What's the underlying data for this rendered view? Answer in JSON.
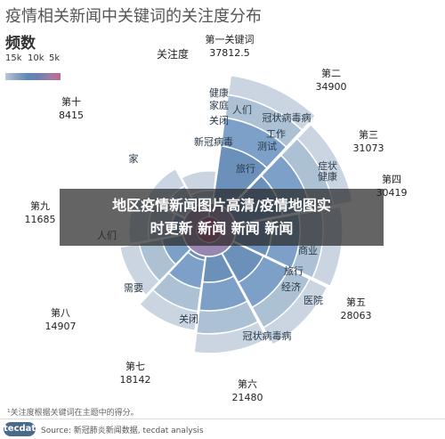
{
  "title": "疫情相关新闻中关键词的关注度分布",
  "legend": {
    "title": "频数",
    "ticks": [
      "15k",
      "10k",
      "5k"
    ]
  },
  "footnote": "¹关注度根据关键词在主题中的得分。",
  "footer": {
    "logo": "tecdat",
    "source": "Source: 新冠肺炎新闻数据, tecdat analysis"
  },
  "overlay": {
    "line1": "地区疫情新闻图片高清/疫情地图实",
    "line2": "时更新 新闻 新闻 新闻"
  },
  "outer_label": "关注度",
  "chart_data": {
    "type": "radial-bar",
    "sectors": [
      {
        "name": "第一关键词",
        "value": "37812.5",
        "keywords": [
          "健康",
          "家庭",
          "关闭",
          "新冠病毒",
          "家"
        ]
      },
      {
        "name": "第二",
        "value": "34900",
        "keywords": [
          "人们",
          "冠状病毒病",
          "工作",
          "测试",
          "旅行"
        ]
      },
      {
        "name": "第三",
        "value": "31073",
        "keywords": [
          "症状"
        ]
      },
      {
        "name": "第四",
        "value": "30419",
        "keywords": [
          "健康"
        ]
      },
      {
        "name": "第五",
        "value": "28063",
        "keywords": [
          "商业",
          "旅行",
          "经济",
          "医院"
        ]
      },
      {
        "name": "第六",
        "value": "21480",
        "keywords": [
          "冠状病毒病"
        ]
      },
      {
        "name": "第七",
        "value": "18142",
        "keywords": [
          "关闭"
        ]
      },
      {
        "name": "第八",
        "value": "14907",
        "keywords": [
          "需要"
        ]
      },
      {
        "name": "第九",
        "value": "11685",
        "keywords": [
          "人们"
        ]
      },
      {
        "name": "第十",
        "value": "8415",
        "keywords": []
      }
    ],
    "colors": {
      "ring_light": "#c7d3df",
      "ring_mid": "#a9bed2",
      "blue": "#6e96c2",
      "blue_dark": "#5b84b3",
      "purple": "#8f7aa9",
      "pink": "#b2557f"
    }
  }
}
